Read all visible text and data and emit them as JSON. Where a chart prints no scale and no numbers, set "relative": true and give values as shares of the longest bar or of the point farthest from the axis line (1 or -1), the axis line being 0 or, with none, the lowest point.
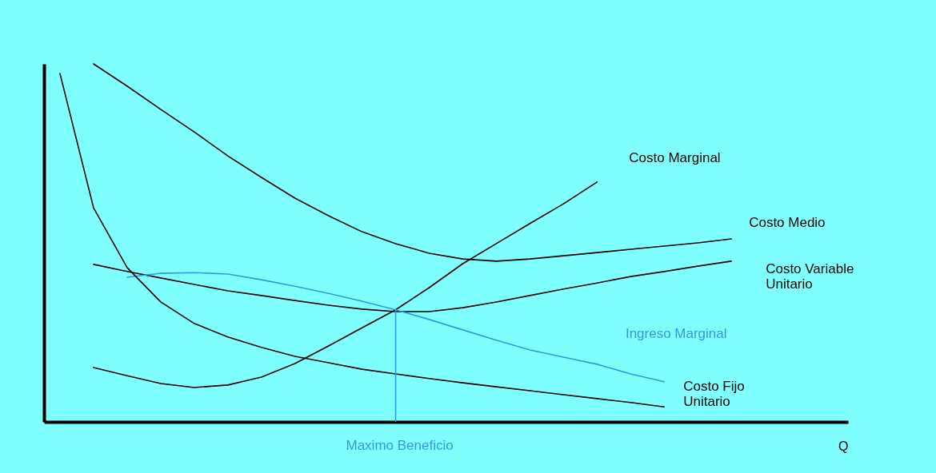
{
  "chart_data": {
    "type": "line",
    "relative": true,
    "xlabel": "Q",
    "categories": [
      null,
      null,
      null,
      null,
      null,
      null,
      null,
      null,
      null,
      null,
      null,
      null,
      null,
      null,
      null,
      null,
      null,
      null,
      null,
      null,
      null,
      null,
      null,
      null
    ],
    "series": [
      {
        "name": "Costo Medio",
        "color": "#000000",
        "values": [
          null,
          1.0,
          0.938,
          0.873,
          0.81,
          0.743,
          0.683,
          0.625,
          0.576,
          0.531,
          0.498,
          0.471,
          0.455,
          0.449,
          0.455,
          0.464,
          0.473,
          0.482,
          0.491,
          0.5,
          0.511,
          null,
          null,
          null
        ]
      },
      {
        "name": "Costo Variable Unitario",
        "color": "#000000",
        "values": [
          null,
          0.44,
          0.42,
          0.402,
          0.384,
          0.366,
          0.353,
          0.339,
          0.326,
          0.315,
          0.308,
          0.308,
          0.319,
          0.335,
          0.353,
          0.371,
          0.388,
          0.406,
          0.42,
          0.435,
          0.449,
          null,
          null,
          null
        ]
      },
      {
        "name": "Costo Marginal",
        "color": "#000000",
        "values": [
          null,
          0.152,
          0.129,
          0.107,
          0.096,
          0.103,
          0.125,
          0.163,
          0.212,
          0.263,
          0.313,
          0.375,
          0.442,
          0.498,
          0.554,
          0.609,
          0.67,
          null,
          null,
          null,
          null,
          null,
          null,
          null
        ]
      },
      {
        "name": "Ingreso Marginal",
        "color": "#3399dd",
        "values": [
          null,
          null,
          0.404,
          0.415,
          0.417,
          0.413,
          0.397,
          0.379,
          0.359,
          0.337,
          0.313,
          0.286,
          0.257,
          0.228,
          0.201,
          0.181,
          0.161,
          0.134,
          0.112,
          null,
          null,
          null,
          null,
          null
        ]
      },
      {
        "name": "Costo Fijo Unitario",
        "color": "#000000",
        "values": [
          0.973,
          0.598,
          0.431,
          0.335,
          0.275,
          0.237,
          0.208,
          0.183,
          0.165,
          0.147,
          0.134,
          0.121,
          0.109,
          0.098,
          0.087,
          0.076,
          0.065,
          0.054,
          0.042,
          null,
          null,
          null,
          null,
          null
        ]
      }
    ],
    "annotations": [
      "Maximo Beneficio"
    ]
  }
}
